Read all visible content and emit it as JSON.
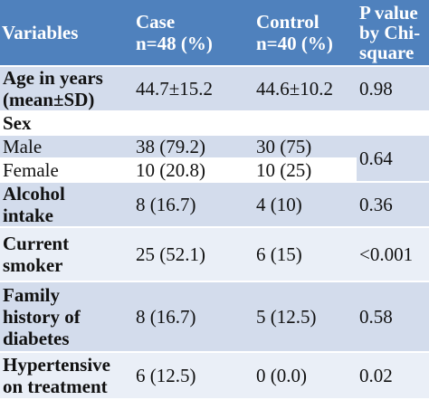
{
  "header": {
    "variables": "Variables",
    "case_line1": "Case",
    "case_line2": "n=48 (%)",
    "control_line1": "Control",
    "control_line2": "n=40 (%)",
    "p_line1": "P value",
    "p_line2": "by Chi-",
    "p_line3": "square"
  },
  "rows": {
    "age": {
      "label1": "Age in years",
      "label2": "(mean±SD)",
      "case": "44.7±15.2",
      "control": "44.6±10.2",
      "p": "0.98"
    },
    "sex": {
      "label": "Sex"
    },
    "male": {
      "label": "Male",
      "case": "38 (79.2)",
      "control": "30 (75)"
    },
    "female": {
      "label": "Female",
      "case": "10 (20.8)",
      "control": "10 (25)"
    },
    "sex_p": "0.64",
    "alcohol": {
      "label1": "Alcohol",
      "label2": "intake",
      "case": "8 (16.7)",
      "control": "4 (10)",
      "p": "0.36"
    },
    "smoker": {
      "label1": "Current",
      "label2": "smoker",
      "case": "25 (52.1)",
      "control": "6 (15)",
      "p": "<0.001"
    },
    "family": {
      "label1": "Family",
      "label2": "history of",
      "label3": "diabetes",
      "case": "8 (16.7)",
      "control": "5 (12.5)",
      "p": "0.58"
    },
    "hypertensive": {
      "label1": "Hypertensive",
      "label2": "on treatment",
      "case": "6 (12.5)",
      "control": "0 (0.0)",
      "p": "0.02"
    }
  },
  "colors": {
    "header_bg": "#4f81bd",
    "row_shade": "#d3dcec",
    "row_light": "#eaeff7"
  }
}
